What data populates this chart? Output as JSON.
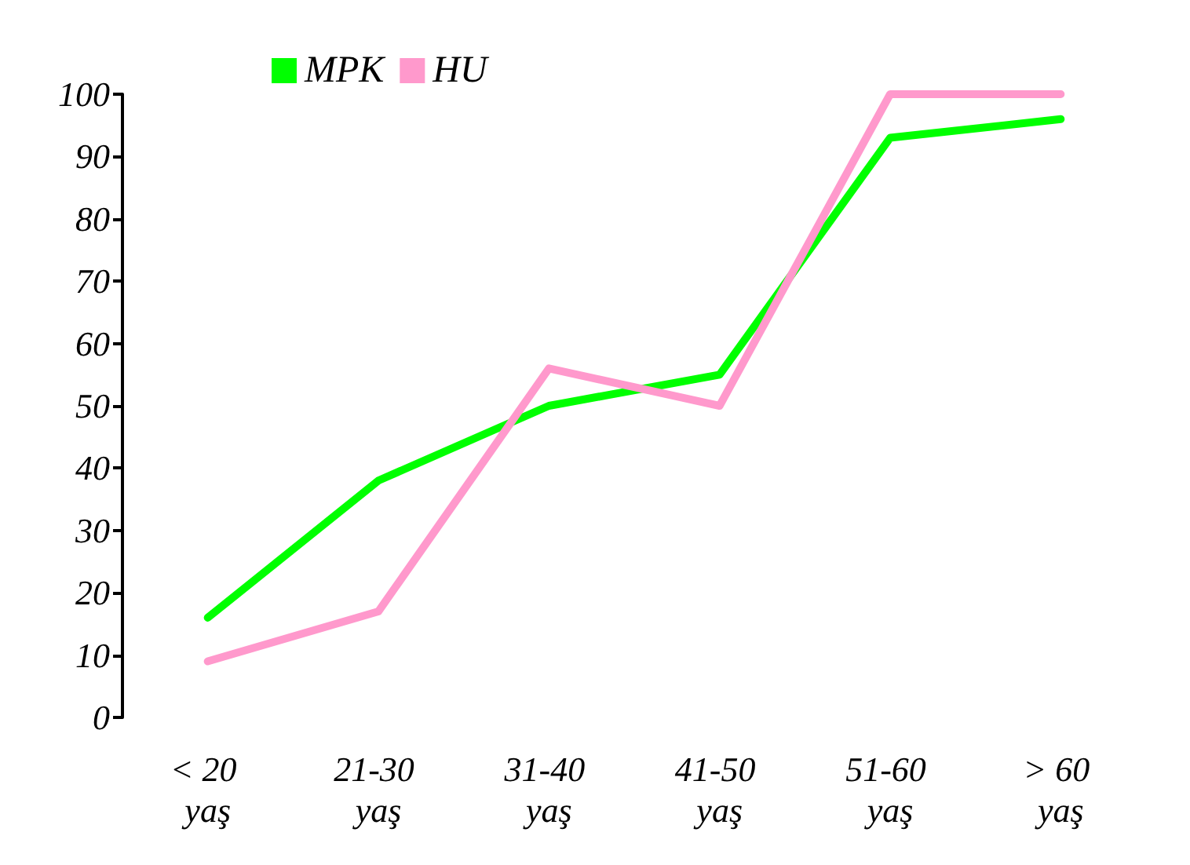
{
  "chart_data": {
    "type": "line",
    "categories": [
      "< 20 yaş",
      "21-30 yaş",
      "31-40 yaş",
      "41-50 yaş",
      "51-60 yaş",
      "> 60 yaş"
    ],
    "series": [
      {
        "name": "MPK",
        "color": "#00ff00",
        "values": [
          16,
          38,
          50,
          55,
          93,
          96
        ]
      },
      {
        "name": "HU",
        "color": "#ff99cc",
        "values": [
          9,
          17,
          56,
          50,
          100,
          100
        ]
      }
    ],
    "ylim": [
      0,
      100
    ],
    "yticks": [
      0,
      10,
      20,
      30,
      40,
      50,
      60,
      70,
      80,
      90,
      100
    ],
    "grid": false,
    "legend": "top left",
    "marker": "none",
    "line_style": "solid"
  }
}
